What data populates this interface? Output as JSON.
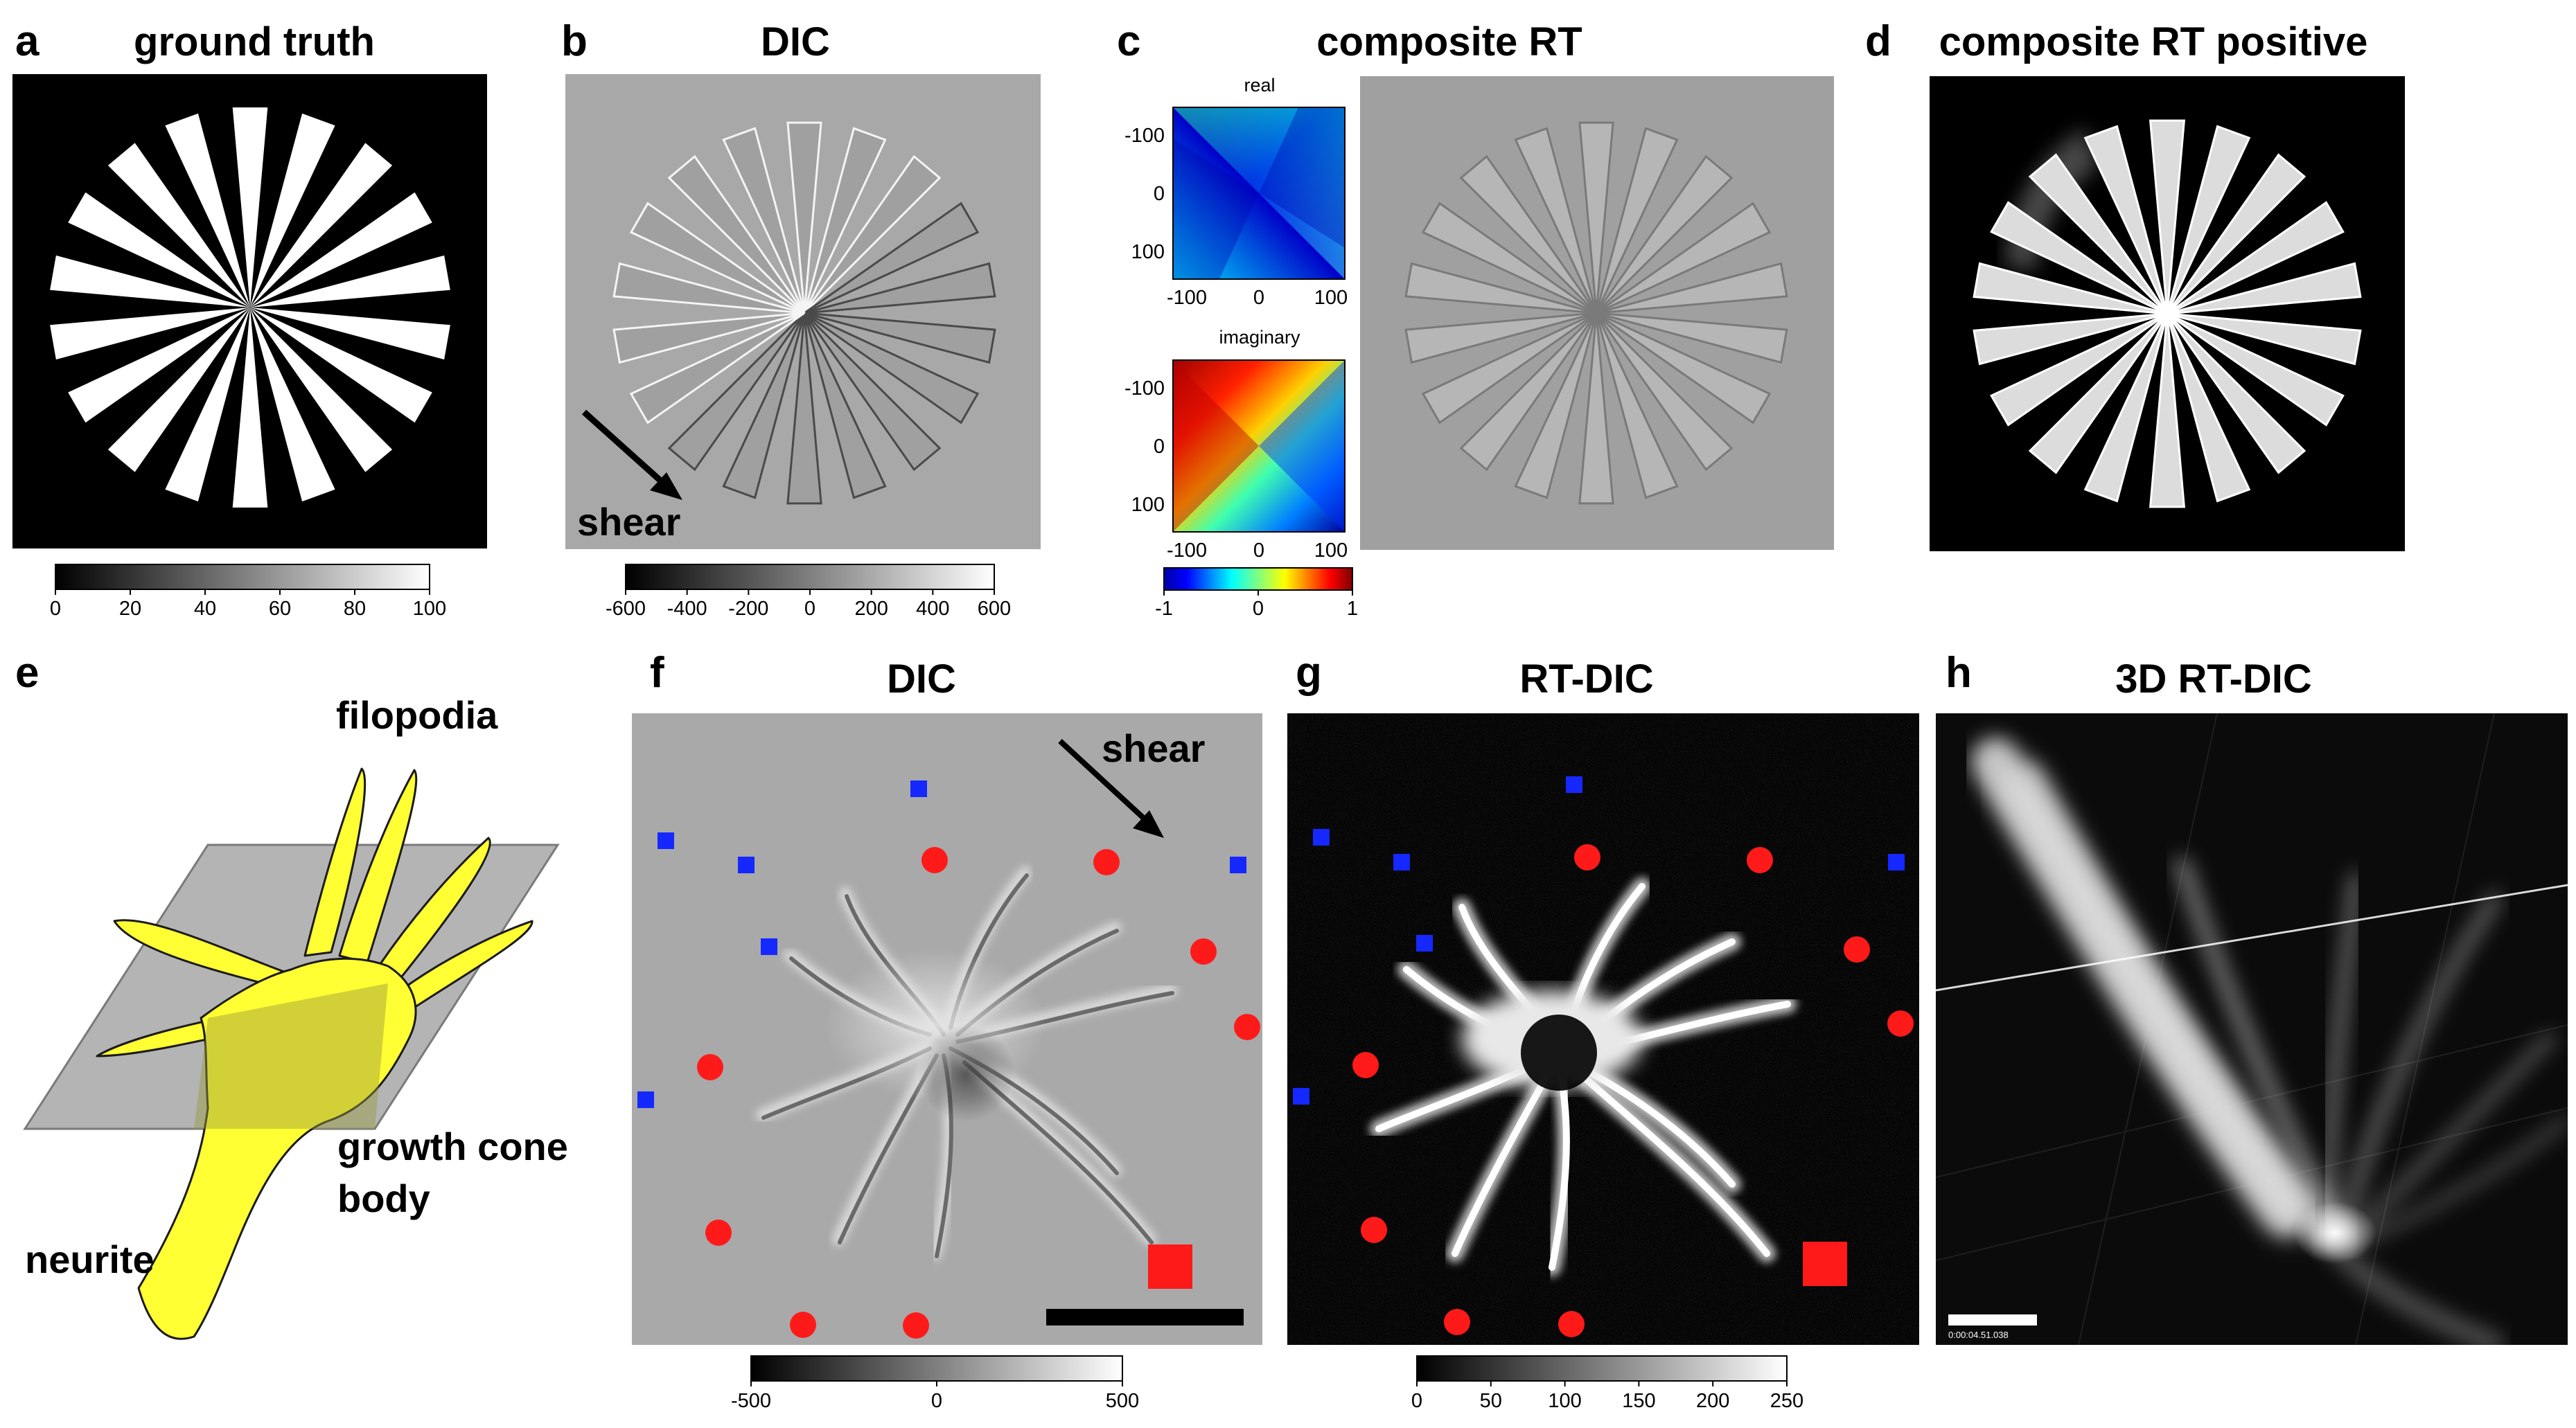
{
  "panels": {
    "a": {
      "letter": "a",
      "title": "ground truth",
      "colorbar": {
        "min": 0,
        "max": 100,
        "ticks": [
          "0",
          "20",
          "40",
          "60",
          "80",
          "100"
        ]
      }
    },
    "b": {
      "letter": "b",
      "title": "DIC",
      "annotation": "shear",
      "colorbar": {
        "min": -600,
        "max": 600,
        "ticks": [
          "-600",
          "-400",
          "-200",
          "0",
          "200",
          "400",
          "600"
        ]
      }
    },
    "c": {
      "letter": "c",
      "title": "composite RT",
      "inset_real": {
        "title": "real",
        "yticks": [
          "-100",
          "0",
          "100"
        ],
        "xticks": [
          "-100",
          "0",
          "100"
        ]
      },
      "inset_imag": {
        "title": "imaginary",
        "yticks": [
          "-100",
          "0",
          "100"
        ],
        "xticks": [
          "-100",
          "0",
          "100"
        ]
      },
      "colorbar": {
        "min": -1,
        "max": 1,
        "ticks": [
          "-1",
          "0",
          "1"
        ]
      }
    },
    "d": {
      "letter": "d",
      "title": "composite RT positive"
    },
    "e": {
      "letter": "e",
      "labels": {
        "filopodia": "filopodia",
        "growth_cone": "growth cone",
        "body": "body",
        "neurite": "neurite"
      }
    },
    "f": {
      "letter": "f",
      "title": "DIC",
      "annotation": "shear",
      "colorbar": {
        "min": -500,
        "max": 500,
        "ticks": [
          "-500",
          "0",
          "500"
        ]
      }
    },
    "g": {
      "letter": "g",
      "title": "RT-DIC",
      "colorbar": {
        "min": 0,
        "max": 250,
        "ticks": [
          "0",
          "50",
          "100",
          "150",
          "200",
          "250"
        ]
      }
    },
    "h": {
      "letter": "h",
      "title": "3D RT-DIC",
      "timestamp": "0:00:04.51.038"
    }
  },
  "colors": {
    "red_marker": "#ff1a1a",
    "blue_marker": "#1428ff",
    "cell_yellow": "#ffff33",
    "plane_gray": "#b4b4b4"
  },
  "spokes": 18
}
